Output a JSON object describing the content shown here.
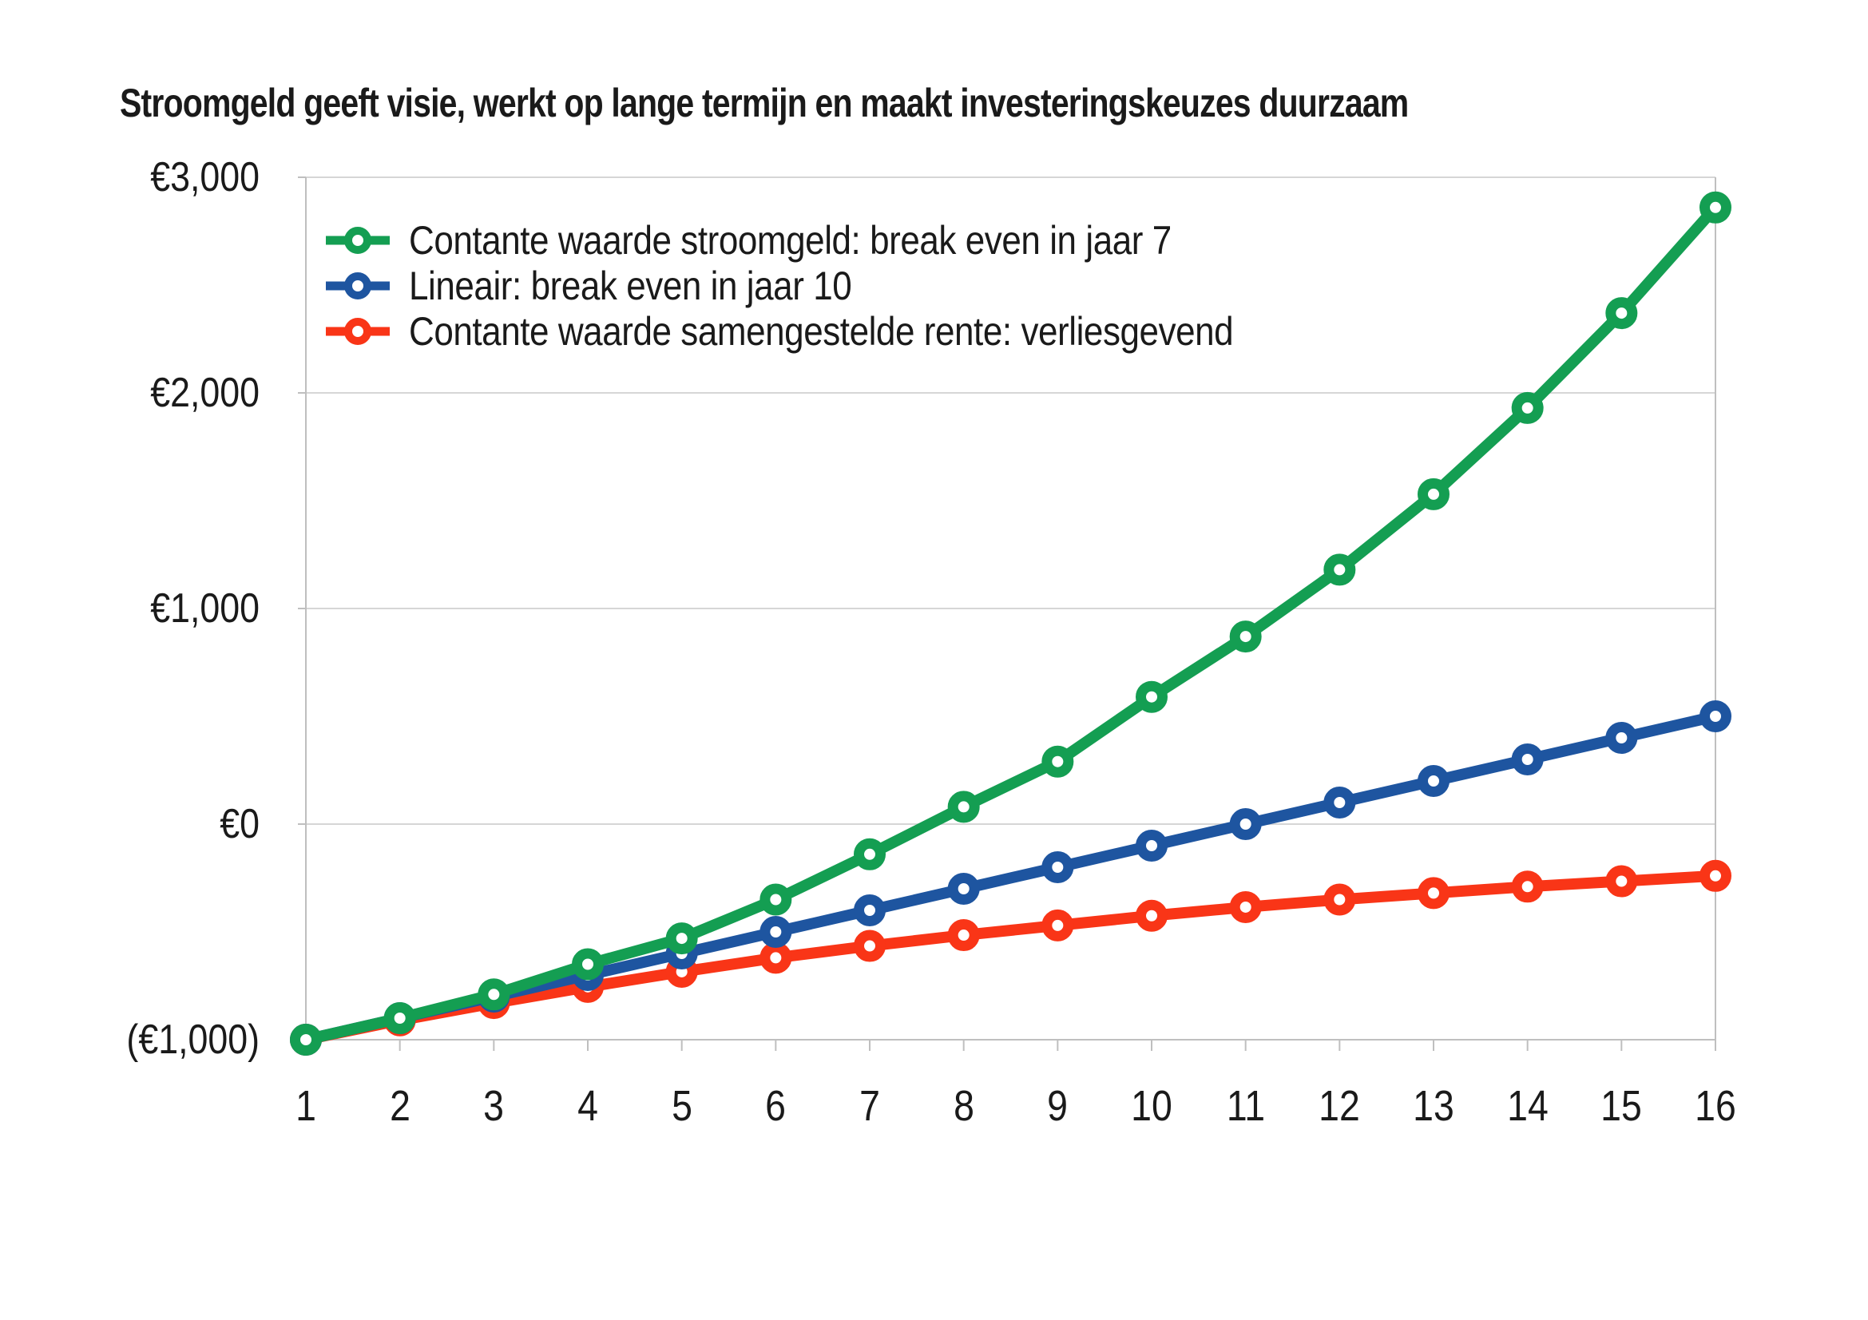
{
  "title": "Stroomgeld geeft visie, werkt op lange termijn en maakt investeringskeuzes duurzaam",
  "colors": {
    "green": "#149E52",
    "blue": "#1E55A0",
    "red": "#F93517",
    "gridline": "#D6D6D6",
    "axis": "#BFBFBF",
    "text": "#1A1A1A"
  },
  "y_axis": {
    "ticks": [
      {
        "value": 3000,
        "label": "€3,000"
      },
      {
        "value": 2000,
        "label": "€2,000"
      },
      {
        "value": 1000,
        "label": "€1,000"
      },
      {
        "value": 0,
        "label": "€0"
      },
      {
        "value": -1000,
        "label": "(€1,000)"
      }
    ]
  },
  "x_axis": {
    "labels": [
      "1",
      "2",
      "3",
      "4",
      "5",
      "6",
      "7",
      "8",
      "9",
      "10",
      "11",
      "12",
      "13",
      "14",
      "15",
      "16"
    ]
  },
  "chart_data": {
    "type": "line",
    "title": "Stroomgeld geeft visie, werkt op lange termijn en maakt investeringskeuzes duurzaam",
    "x": [
      1,
      2,
      3,
      4,
      5,
      6,
      7,
      8,
      9,
      10,
      11,
      12,
      13,
      14,
      15,
      16
    ],
    "xlabel": "",
    "ylabel": "",
    "ylim": [
      -1000,
      3000
    ],
    "y_tick_step": 1000,
    "grid": true,
    "legend_position": "top-left-inside",
    "marker": "open-circle",
    "series": [
      {
        "name": "Contante waarde stroomgeld: break even in jaar 7",
        "color": "#149E52",
        "values": [
          -1000,
          -900,
          -790,
          -650,
          -530,
          -350,
          -140,
          80,
          290,
          590,
          870,
          1180,
          1530,
          1930,
          2370,
          2860
        ]
      },
      {
        "name": "Lineair: break even in jaar 10",
        "color": "#1E55A0",
        "values": [
          -1000,
          -900,
          -800,
          -700,
          -600,
          -500,
          -400,
          -300,
          -200,
          -100,
          0,
          100,
          200,
          300,
          400,
          500
        ]
      },
      {
        "name": "Contante waarde samengestelde rente: verliesgevend",
        "color": "#F93517",
        "values": [
          -1000,
          -910,
          -830,
          -755,
          -685,
          -620,
          -565,
          -515,
          -470,
          -425,
          -385,
          -350,
          -320,
          -290,
          -265,
          -240
        ]
      }
    ]
  }
}
